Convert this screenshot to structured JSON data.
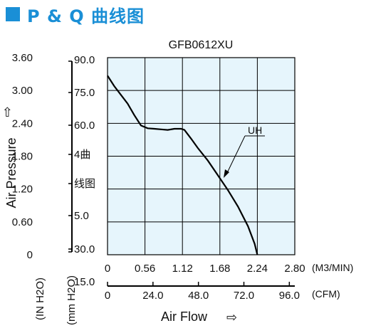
{
  "header": {
    "title": "P & Q 曲线图",
    "title_color": "#1a8fd6"
  },
  "chart_data": {
    "type": "line",
    "title": "GFB0612XU",
    "plot_bg": "#e6f5fc",
    "grid": true,
    "xlim": [
      0,
      2.8
    ],
    "ylim": [
      0,
      3.6
    ],
    "x_ticks": [
      "0",
      "0.56",
      "1.12",
      "1.68",
      "2.24",
      "2.80"
    ],
    "x_unit": "(M3/MIN)",
    "x2_ticks": [
      "0",
      "24.0",
      "48.0",
      "72.0",
      "96.0"
    ],
    "x2_unit": "(CFM)",
    "xlabel": "Air Flow",
    "y_ticks": [
      "0",
      "0.60",
      "1.20",
      "1.80",
      "2.40",
      "3.00",
      "3.60"
    ],
    "y_unit": "(IN H2O)",
    "y2_ticks": [
      "15.0",
      "30.0",
      "5.0",
      "线图",
      "4曲",
      "60.0",
      "75.0",
      "90.0"
    ],
    "y2_unit": "(mm H2O)",
    "ylabel": "Air Pressure",
    "series": [
      {
        "name": "UH",
        "x": [
          0.0,
          0.1,
          0.2,
          0.3,
          0.4,
          0.5,
          0.6,
          0.7,
          0.8,
          0.9,
          1.0,
          1.1,
          1.15,
          1.25,
          1.35,
          1.5,
          1.65,
          1.8,
          1.95,
          2.1,
          2.2,
          2.24
        ],
        "y": [
          3.27,
          3.08,
          2.92,
          2.76,
          2.55,
          2.36,
          2.31,
          2.3,
          2.29,
          2.28,
          2.3,
          2.3,
          2.28,
          2.12,
          1.95,
          1.72,
          1.45,
          1.18,
          0.88,
          0.52,
          0.2,
          0.0
        ]
      }
    ]
  }
}
